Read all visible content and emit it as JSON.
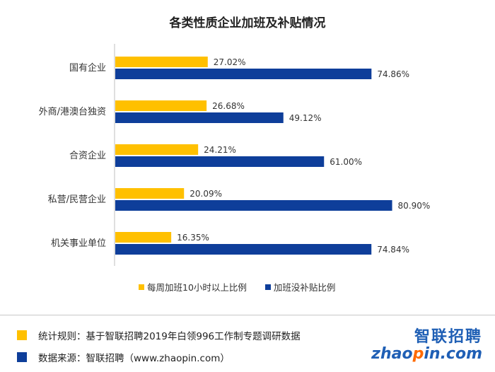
{
  "chart_data": {
    "type": "bar",
    "orientation": "horizontal",
    "title": "各类性质企业加班及补贴情况",
    "categories": [
      "国有企业",
      "外商/港澳台独资",
      "合资企业",
      "私营/民营企业",
      "机关事业单位"
    ],
    "series": [
      {
        "name": "每周加班10小时以上比例",
        "color": "#FFC000",
        "values": [
          27.02,
          26.68,
          24.21,
          20.09,
          16.35
        ],
        "labels": [
          "27.02%",
          "26.68%",
          "24.21%",
          "20.09%",
          "16.35%"
        ]
      },
      {
        "name": "加班没补贴比例",
        "color": "#0E3E9A",
        "values": [
          74.86,
          49.12,
          61.0,
          80.9,
          74.84
        ],
        "labels": [
          "74.86%",
          "49.12%",
          "61.00%",
          "80.90%",
          "74.84%"
        ]
      }
    ],
    "xlim": [
      0,
      100
    ],
    "grid": false,
    "legend_position": "bottom"
  },
  "footer": {
    "rule_text": "统计规则：基于智联招聘2019年白领996工作制专题调研数据",
    "rule_color": "#FFC000",
    "source_text": "数据来源：智联招聘（www.zhaopin.com）",
    "source_color": "#0E3E9A"
  },
  "brand": {
    "cn": "智联招聘",
    "en_prefix": "zhao",
    "en_o": "p",
    "en_suffix": "in.com"
  }
}
